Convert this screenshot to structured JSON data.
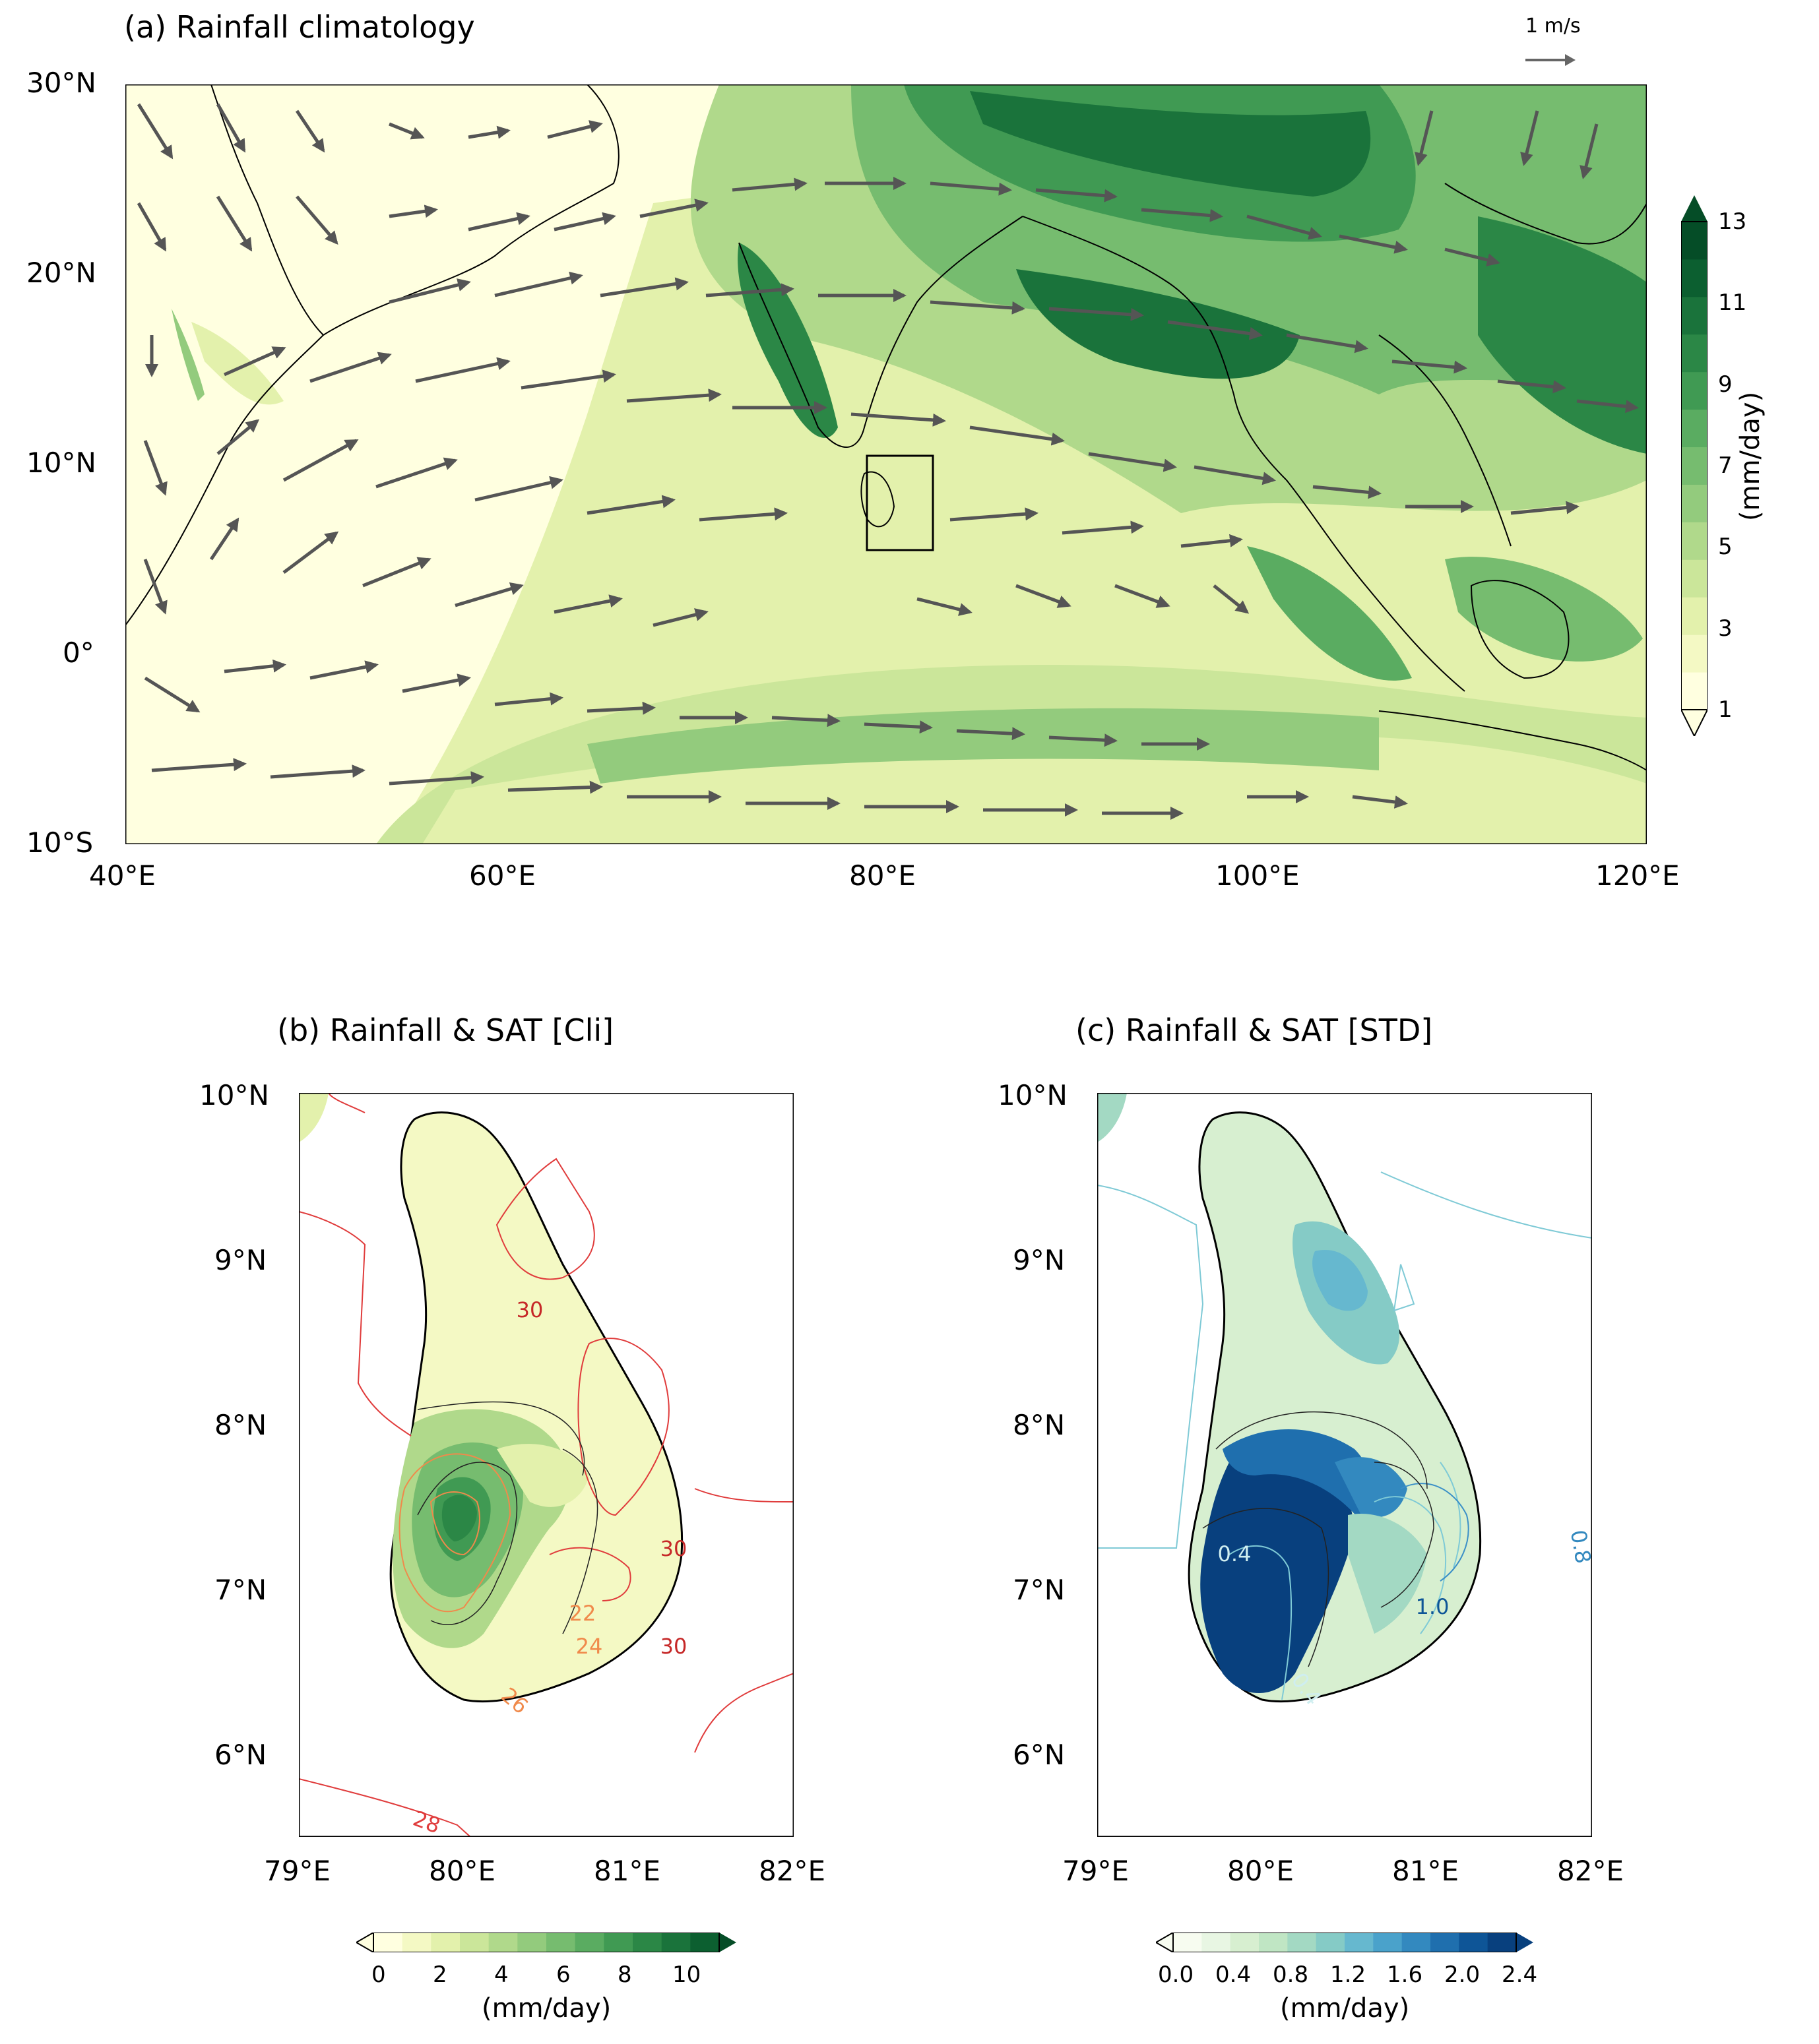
{
  "figure": {
    "panel_a": {
      "title": "(a) Rainfall climatology",
      "lat_ticks": [
        "30°N",
        "20°N",
        "10°N",
        "0°",
        "10°S"
      ],
      "lon_ticks": [
        "40°E",
        "60°E",
        "80°E",
        "100°E",
        "120°E"
      ],
      "wind_reference": "1 m/s",
      "colorbar": {
        "ticks": [
          "1",
          "3",
          "5",
          "7",
          "9",
          "11",
          "13"
        ],
        "label": "(mm/day)",
        "colors": [
          "#ffffe0",
          "#f4f9c4",
          "#e3f1ac",
          "#cbe69a",
          "#b0d98b",
          "#93cb7d",
          "#76bc6f",
          "#5aac61",
          "#409a53",
          "#2b8746",
          "#1a733b",
          "#0c5f30",
          "#054d27"
        ],
        "extend": "both"
      }
    },
    "panel_b": {
      "title": "(b) Rainfall & SAT [Cli]",
      "lat_ticks": [
        "10°N",
        "9°N",
        "8°N",
        "7°N",
        "6°N"
      ],
      "lon_ticks": [
        "79°E",
        "80°E",
        "81°E",
        "82°E"
      ],
      "contour_labels": [
        "30",
        "30",
        "30",
        "28",
        "26",
        "24",
        "22"
      ],
      "colorbar": {
        "ticks": [
          "0",
          "2",
          "4",
          "6",
          "8",
          "10"
        ],
        "label": "(mm/day)",
        "extend": "both"
      }
    },
    "panel_c": {
      "title": "(c) Rainfall & SAT [STD]",
      "lat_ticks": [
        "10°N",
        "9°N",
        "8°N",
        "7°N",
        "6°N"
      ],
      "lon_ticks": [
        "79°E",
        "80°E",
        "81°E",
        "82°E"
      ],
      "contour_labels": [
        "0.4",
        "0.4",
        "1.0",
        "0.8"
      ],
      "colorbar": {
        "ticks": [
          "0.0",
          "0.4",
          "0.8",
          "1.2",
          "1.6",
          "2.0",
          "2.4"
        ],
        "label": "(mm/day)",
        "colors": [
          "#f7fcf0",
          "#e8f6e3",
          "#d7efd0",
          "#c0e6c4",
          "#a3d9c3",
          "#85cbc6",
          "#66b8cf",
          "#4aa2cb",
          "#3389bf",
          "#1f6fae",
          "#0e5597",
          "#08407e"
        ],
        "extend": "both"
      }
    }
  }
}
